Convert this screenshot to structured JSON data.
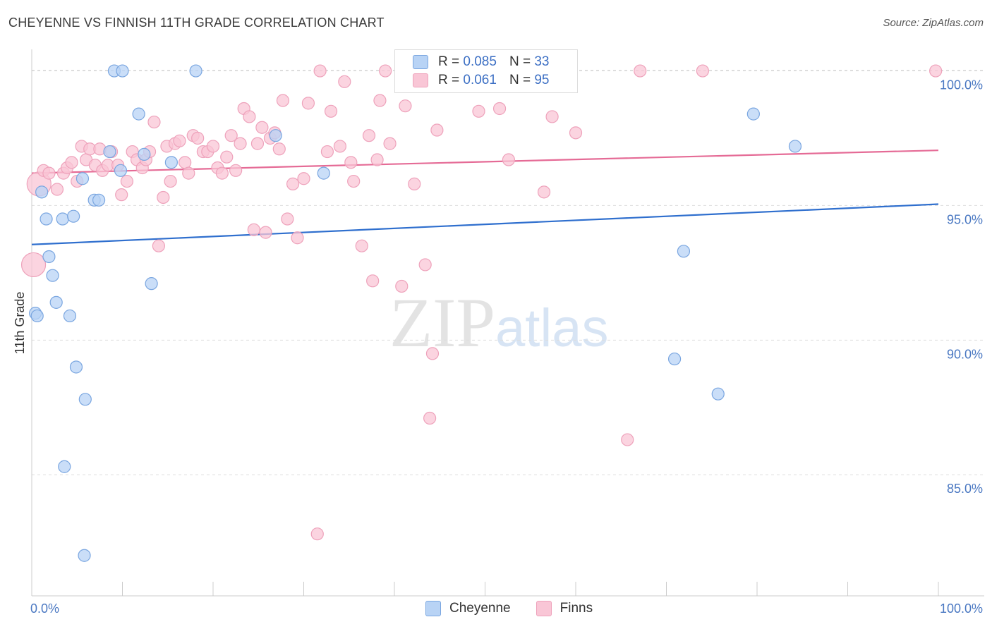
{
  "title": "CHEYENNE VS FINNISH 11TH GRADE CORRELATION CHART",
  "source": "Source: ZipAtlas.com",
  "watermark": {
    "zip": "ZIP",
    "atlas": "atlas"
  },
  "legend_top": [
    {
      "r_label": "R = ",
      "r_value": "0.085",
      "n_label": "N = ",
      "n_value": "33"
    },
    {
      "r_label": "R = ",
      "r_value": "0.061",
      "n_label": "N = ",
      "n_value": "95"
    }
  ],
  "colors": {
    "cheyenne_fill": "#b8d3f5",
    "cheyenne_stroke": "#7aa6e0",
    "cheyenne_line": "#2f6fce",
    "finns_fill": "#f9c6d6",
    "finns_stroke": "#eea2bb",
    "finns_line": "#e56b96",
    "grid": "#dddddd",
    "tick_text": "#4a78c2"
  },
  "chart_data": {
    "type": "scatter",
    "title": "CHEYENNE VS FINNISH 11TH GRADE CORRELATION CHART",
    "xlabel": "",
    "ylabel": "11th Grade",
    "xlim": [
      0,
      100
    ],
    "ylim": [
      80.5,
      100.8
    ],
    "x_tick_labels": [
      "0.0%",
      "100.0%"
    ],
    "y_ticks": [
      100,
      95,
      90,
      85
    ],
    "y_tick_labels": [
      "100.0%",
      "95.0%",
      "90.0%",
      "85.0%"
    ],
    "grid": true,
    "legend_placement": "bottom-center",
    "series": [
      {
        "name": "Cheyenne",
        "r": 0.085,
        "n": 33,
        "trend": {
          "x": [
            0,
            100
          ],
          "y": [
            93.55,
            95.05
          ]
        },
        "points": [
          [
            0.4,
            91.0
          ],
          [
            0.6,
            90.9
          ],
          [
            1.1,
            95.5
          ],
          [
            1.6,
            94.5
          ],
          [
            1.9,
            93.1
          ],
          [
            2.3,
            92.4
          ],
          [
            2.7,
            91.4
          ],
          [
            3.4,
            94.5
          ],
          [
            4.2,
            90.9
          ],
          [
            4.6,
            94.6
          ],
          [
            4.9,
            89.0
          ],
          [
            5.6,
            96.0
          ],
          [
            5.9,
            87.8
          ],
          [
            6.9,
            95.2
          ],
          [
            7.4,
            95.2
          ],
          [
            8.6,
            97.0
          ],
          [
            9.1,
            100.0
          ],
          [
            10.0,
            100.0
          ],
          [
            9.8,
            96.3
          ],
          [
            11.8,
            98.4
          ],
          [
            12.4,
            96.9
          ],
          [
            13.2,
            92.1
          ],
          [
            15.4,
            96.6
          ],
          [
            18.1,
            100.0
          ],
          [
            26.9,
            97.6
          ],
          [
            32.2,
            96.2
          ],
          [
            70.9,
            89.3
          ],
          [
            71.9,
            93.3
          ],
          [
            75.7,
            88.0
          ],
          [
            79.6,
            98.4
          ],
          [
            84.2,
            97.2
          ],
          [
            3.6,
            85.3
          ],
          [
            5.8,
            82.0
          ]
        ]
      },
      {
        "name": "Finns",
        "r": 0.061,
        "n": 95,
        "trend": {
          "x": [
            0,
            100
          ],
          "y": [
            96.2,
            97.05
          ]
        },
        "points": [
          [
            0.2,
            92.8
          ],
          [
            0.8,
            95.8
          ],
          [
            1.3,
            96.3
          ],
          [
            1.9,
            96.2
          ],
          [
            2.8,
            95.6
          ],
          [
            3.5,
            96.2
          ],
          [
            3.9,
            96.4
          ],
          [
            4.4,
            96.6
          ],
          [
            5.0,
            95.9
          ],
          [
            5.5,
            97.2
          ],
          [
            6.0,
            96.7
          ],
          [
            6.4,
            97.1
          ],
          [
            7.0,
            96.5
          ],
          [
            7.5,
            97.1
          ],
          [
            7.8,
            96.3
          ],
          [
            8.4,
            96.5
          ],
          [
            8.8,
            97.0
          ],
          [
            9.5,
            96.5
          ],
          [
            9.9,
            95.4
          ],
          [
            10.5,
            95.9
          ],
          [
            11.1,
            97.0
          ],
          [
            11.6,
            96.7
          ],
          [
            12.2,
            96.4
          ],
          [
            12.6,
            96.7
          ],
          [
            13.0,
            97.0
          ],
          [
            13.5,
            98.1
          ],
          [
            14.0,
            93.5
          ],
          [
            14.5,
            95.3
          ],
          [
            14.9,
            97.2
          ],
          [
            15.3,
            95.9
          ],
          [
            15.8,
            97.3
          ],
          [
            16.3,
            97.4
          ],
          [
            16.9,
            96.6
          ],
          [
            17.3,
            96.2
          ],
          [
            17.8,
            97.6
          ],
          [
            18.3,
            97.5
          ],
          [
            18.9,
            97.0
          ],
          [
            19.4,
            97.0
          ],
          [
            20.0,
            97.2
          ],
          [
            20.5,
            96.4
          ],
          [
            21.0,
            96.2
          ],
          [
            21.5,
            96.8
          ],
          [
            22.0,
            97.6
          ],
          [
            22.5,
            96.3
          ],
          [
            23.0,
            97.3
          ],
          [
            23.4,
            98.6
          ],
          [
            24.0,
            98.3
          ],
          [
            24.5,
            94.1
          ],
          [
            24.9,
            97.3
          ],
          [
            25.4,
            97.9
          ],
          [
            25.8,
            94.0
          ],
          [
            26.3,
            97.5
          ],
          [
            26.8,
            97.7
          ],
          [
            27.3,
            97.1
          ],
          [
            27.7,
            98.9
          ],
          [
            28.2,
            94.5
          ],
          [
            28.8,
            95.8
          ],
          [
            29.3,
            93.8
          ],
          [
            30.0,
            96.0
          ],
          [
            30.5,
            98.8
          ],
          [
            31.5,
            82.8
          ],
          [
            31.8,
            100.0
          ],
          [
            32.6,
            97.0
          ],
          [
            33.0,
            98.5
          ],
          [
            34.0,
            97.2
          ],
          [
            34.5,
            99.6
          ],
          [
            35.2,
            96.6
          ],
          [
            35.5,
            95.9
          ],
          [
            36.4,
            93.5
          ],
          [
            37.2,
            97.6
          ],
          [
            37.6,
            92.2
          ],
          [
            38.1,
            96.7
          ],
          [
            38.4,
            98.9
          ],
          [
            39.0,
            100.0
          ],
          [
            39.5,
            97.3
          ],
          [
            40.8,
            92.0
          ],
          [
            41.2,
            98.7
          ],
          [
            42.2,
            95.8
          ],
          [
            43.0,
            100.0
          ],
          [
            43.4,
            92.8
          ],
          [
            43.9,
            87.1
          ],
          [
            44.2,
            89.5
          ],
          [
            44.7,
            97.8
          ],
          [
            49.3,
            98.5
          ],
          [
            51.6,
            98.6
          ],
          [
            52.6,
            96.7
          ],
          [
            55.5,
            100.0
          ],
          [
            56.5,
            95.5
          ],
          [
            57.4,
            98.3
          ],
          [
            59.0,
            100.0
          ],
          [
            60.0,
            97.7
          ],
          [
            65.7,
            86.3
          ],
          [
            67.1,
            100.0
          ],
          [
            74.0,
            100.0
          ],
          [
            99.7,
            100.0
          ]
        ]
      }
    ]
  }
}
